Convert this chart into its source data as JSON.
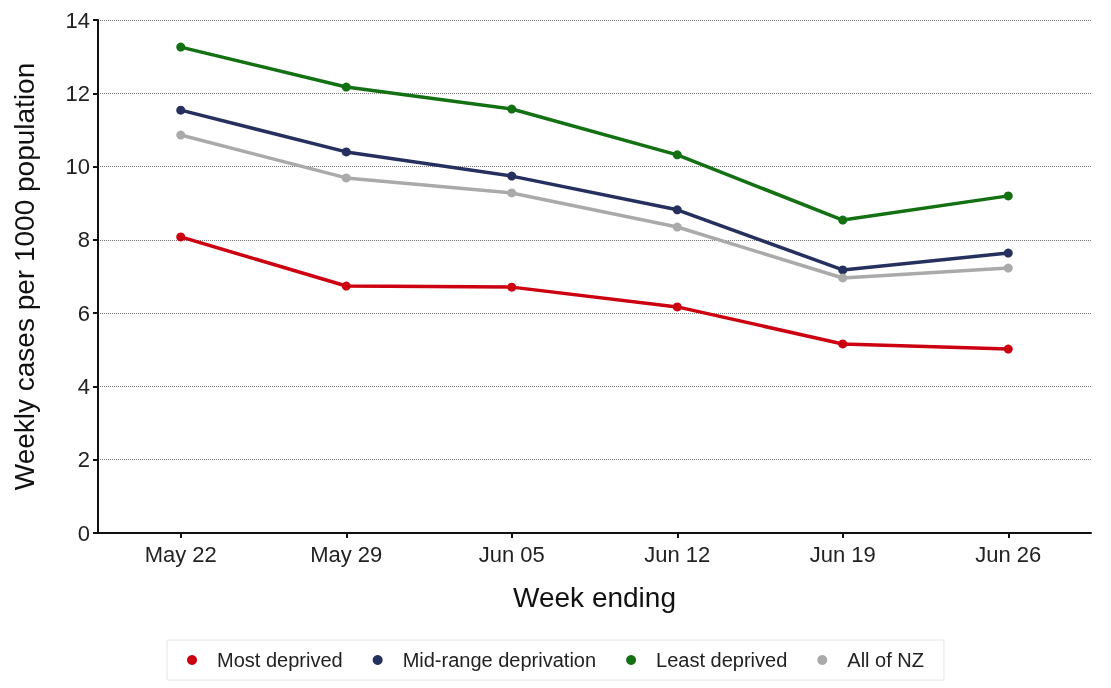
{
  "chart_data": {
    "type": "line",
    "xlabel": "Week ending",
    "ylabel": "Weekly cases per 1000 population",
    "categories": [
      "May 22",
      "May 29",
      "Jun 05",
      "Jun 12",
      "Jun 19",
      "Jun 26"
    ],
    "series": [
      {
        "name": "Most deprived",
        "color": "#cc0010",
        "values": [
          8.08,
          6.74,
          6.71,
          6.17,
          5.16,
          5.02
        ]
      },
      {
        "name": "Mid-range deprivation",
        "color": "#25305e",
        "values": [
          11.54,
          10.4,
          9.74,
          8.82,
          7.18,
          7.64
        ]
      },
      {
        "name": "Least deprived",
        "color": "#137113",
        "values": [
          13.26,
          12.17,
          11.57,
          10.32,
          8.54,
          9.2
        ]
      },
      {
        "name": "All of NZ",
        "color": "#aaaaaa",
        "values": [
          10.86,
          9.69,
          9.28,
          8.35,
          6.96,
          7.23
        ]
      }
    ],
    "ylim": [
      0,
      14
    ],
    "yticks": [
      0,
      2,
      4,
      6,
      8,
      10,
      12,
      14
    ],
    "grid": "y",
    "legend": "bottom",
    "marker": "circle",
    "line_style": "solid"
  }
}
